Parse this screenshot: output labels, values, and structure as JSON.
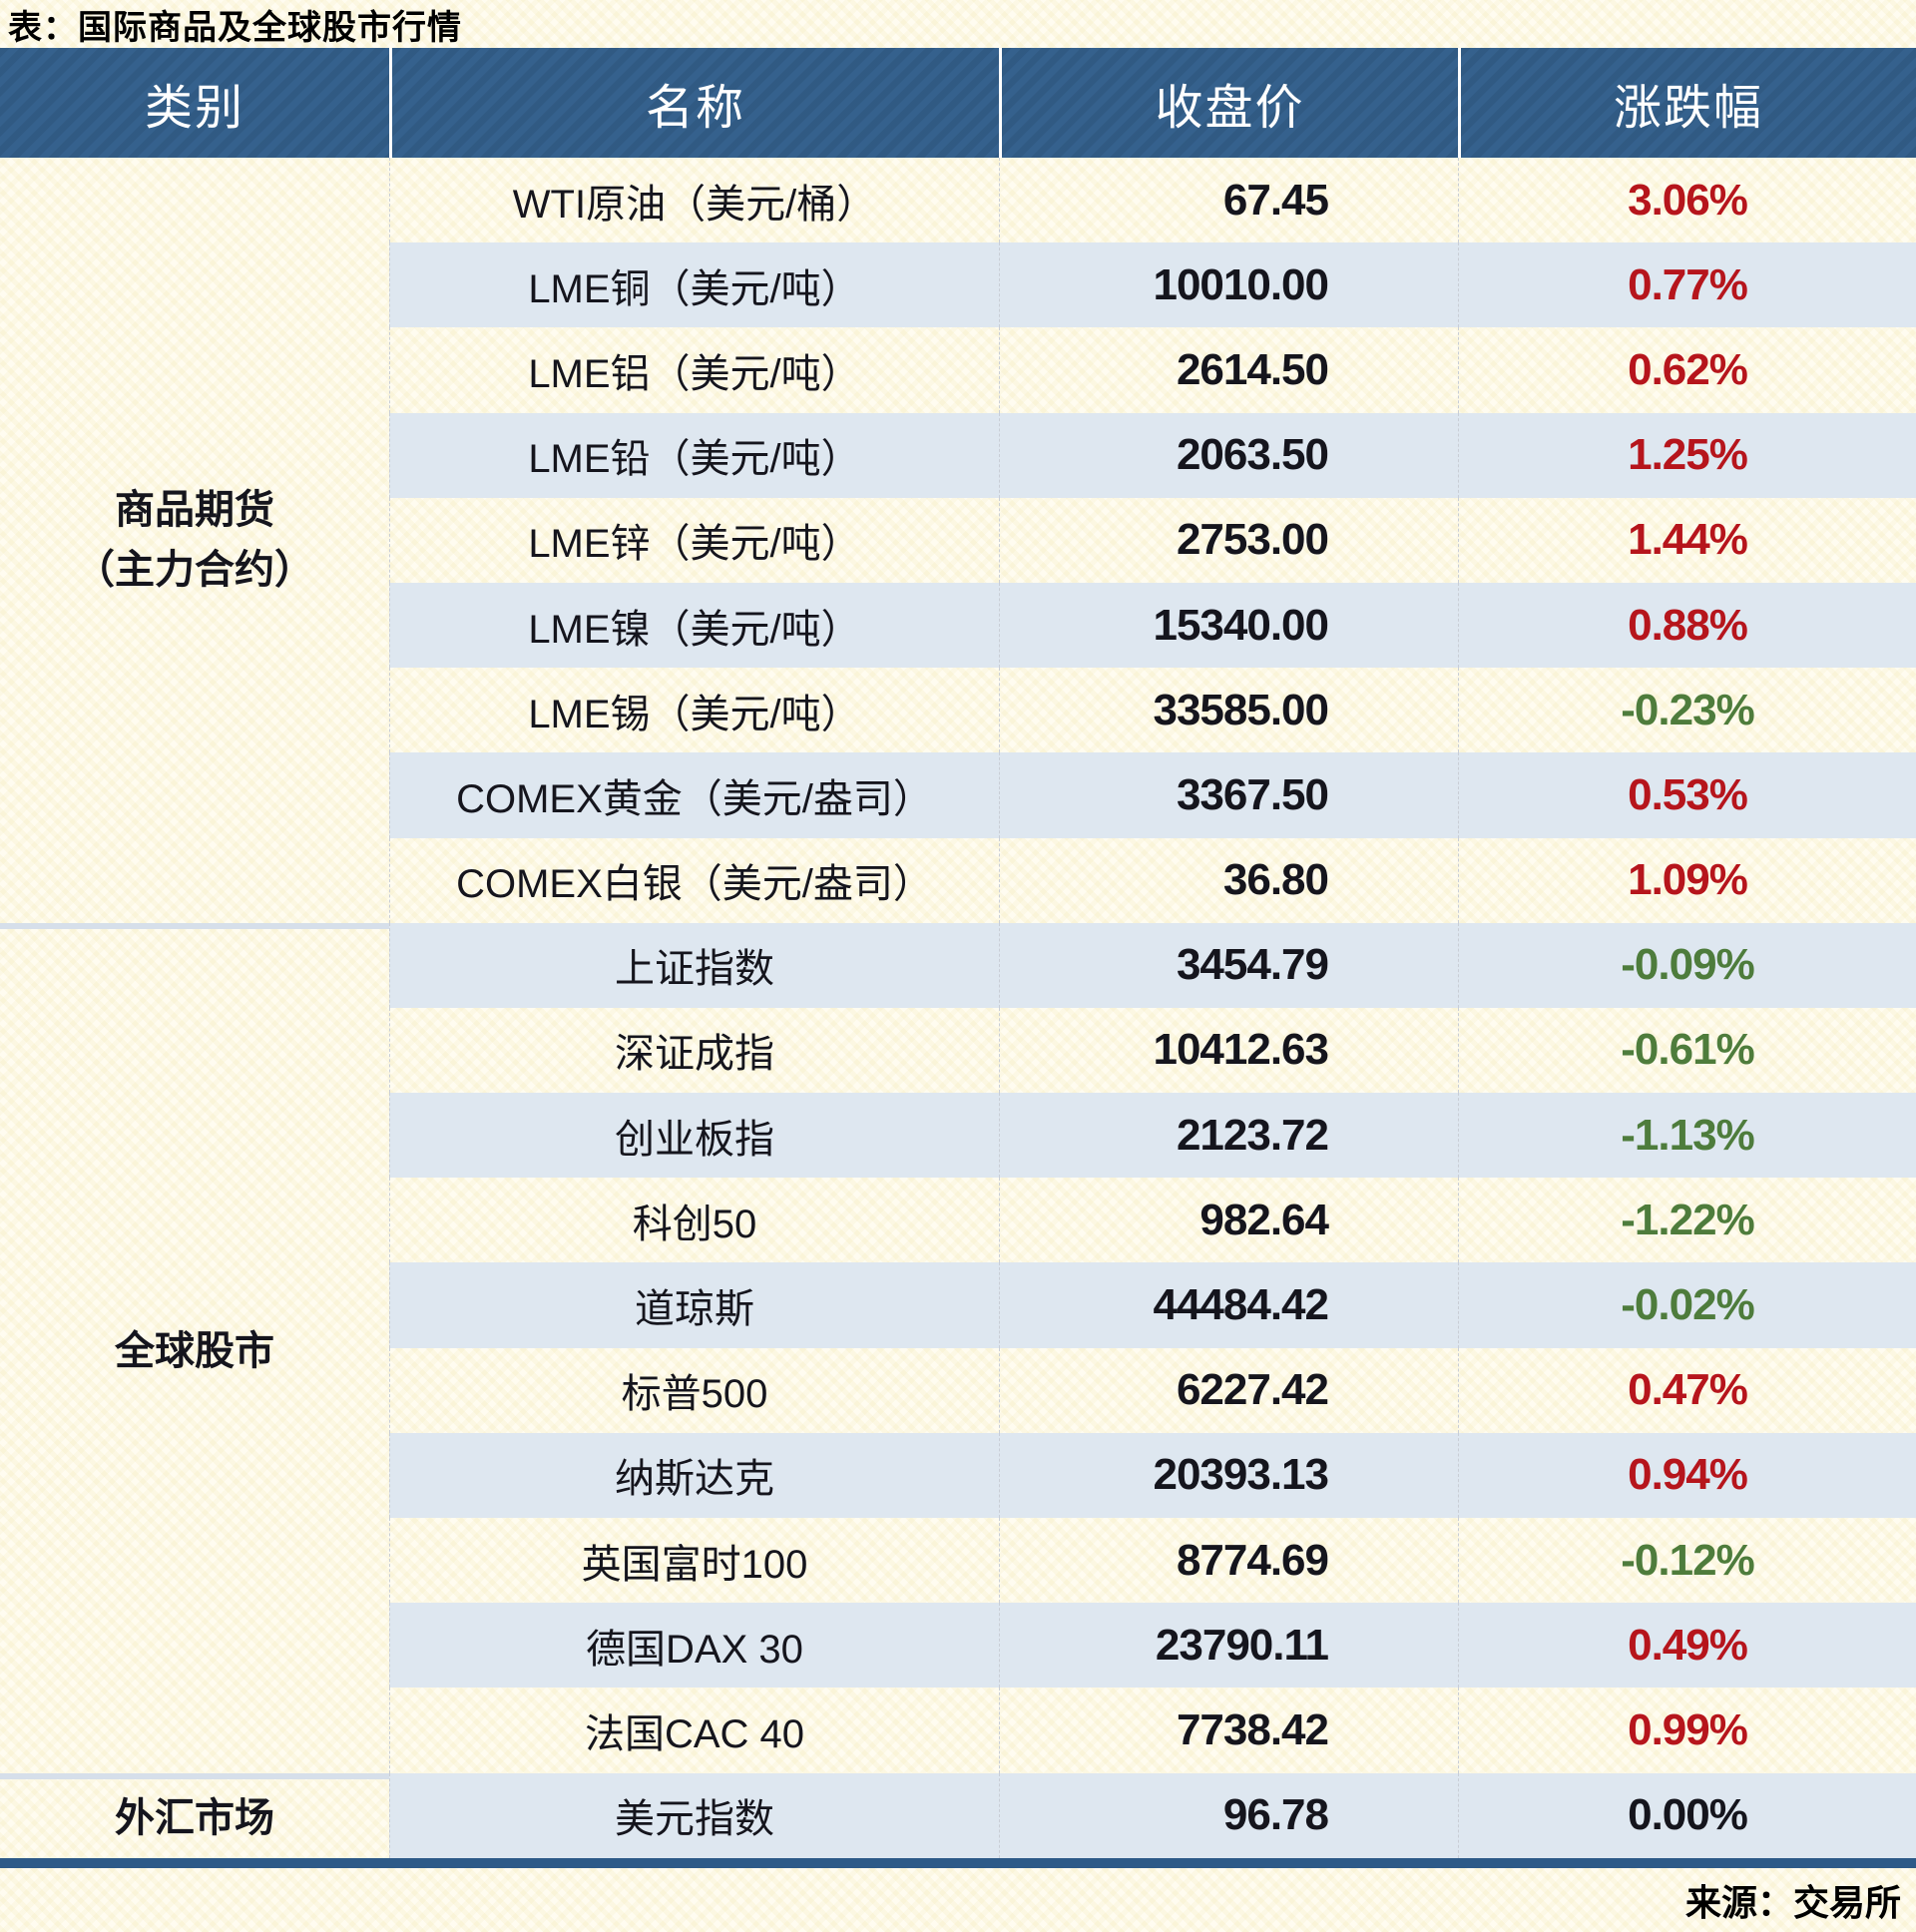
{
  "title": "表：国际商品及全球股市行情",
  "source": "来源：交易所",
  "header": {
    "category": "类别",
    "name": "名称",
    "close": "收盘价",
    "change": "涨跌幅"
  },
  "sections": [
    {
      "category_lines": [
        "商品期货",
        "（主力合约）"
      ],
      "rows": [
        {
          "name": "WTI原油（美元/桶）",
          "close": "67.45",
          "change": "3.06%",
          "dir": "up"
        },
        {
          "name": "LME铜（美元/吨）",
          "close": "10010.00",
          "change": "0.77%",
          "dir": "up"
        },
        {
          "name": "LME铝（美元/吨）",
          "close": "2614.50",
          "change": "0.62%",
          "dir": "up"
        },
        {
          "name": "LME铅（美元/吨）",
          "close": "2063.50",
          "change": "1.25%",
          "dir": "up"
        },
        {
          "name": "LME锌（美元/吨）",
          "close": "2753.00",
          "change": "1.44%",
          "dir": "up"
        },
        {
          "name": "LME镍（美元/吨）",
          "close": "15340.00",
          "change": "0.88%",
          "dir": "up"
        },
        {
          "name": "LME锡（美元/吨）",
          "close": "33585.00",
          "change": "-0.23%",
          "dir": "down"
        },
        {
          "name": "COMEX黄金（美元/盎司）",
          "close": "3367.50",
          "change": "0.53%",
          "dir": "up"
        },
        {
          "name": "COMEX白银（美元/盎司）",
          "close": "36.80",
          "change": "1.09%",
          "dir": "up"
        }
      ]
    },
    {
      "category_lines": [
        "全球股市"
      ],
      "rows": [
        {
          "name": "上证指数",
          "close": "3454.79",
          "change": "-0.09%",
          "dir": "down"
        },
        {
          "name": "深证成指",
          "close": "10412.63",
          "change": "-0.61%",
          "dir": "down"
        },
        {
          "name": "创业板指",
          "close": "2123.72",
          "change": "-1.13%",
          "dir": "down"
        },
        {
          "name": "科创50",
          "close": "982.64",
          "change": "-1.22%",
          "dir": "down"
        },
        {
          "name": "道琼斯",
          "close": "44484.42",
          "change": "-0.02%",
          "dir": "down"
        },
        {
          "name": "标普500",
          "close": "6227.42",
          "change": "0.47%",
          "dir": "up"
        },
        {
          "name": "纳斯达克",
          "close": "20393.13",
          "change": "0.94%",
          "dir": "up"
        },
        {
          "name": "英国富时100",
          "close": "8774.69",
          "change": "-0.12%",
          "dir": "down"
        },
        {
          "name": "德国DAX 30",
          "close": "23790.11",
          "change": "0.49%",
          "dir": "up"
        },
        {
          "name": "法国CAC 40",
          "close": "7738.42",
          "change": "0.99%",
          "dir": "up"
        }
      ]
    },
    {
      "category_lines": [
        "外汇市场"
      ],
      "rows": [
        {
          "name": "美元指数",
          "close": "96.78",
          "change": "0.00%",
          "dir": "flat"
        }
      ]
    }
  ],
  "colors": {
    "header_bg": "#35618d",
    "stripe_row": "#dee7f0",
    "plain_row": "#fffcf0",
    "up_red": "#b6151c",
    "down_green": "#4e7c3c",
    "text": "#15151d",
    "bottom_line": "#2d5a88"
  },
  "chart_data": {
    "type": "table",
    "title": "表：国际商品及全球股市行情",
    "columns": [
      "类别",
      "名称",
      "收盘价",
      "涨跌幅"
    ],
    "rows": [
      [
        "商品期货（主力合约）",
        "WTI原油（美元/桶）",
        67.45,
        "3.06%"
      ],
      [
        "商品期货（主力合约）",
        "LME铜（美元/吨）",
        10010.0,
        "0.77%"
      ],
      [
        "商品期货（主力合约）",
        "LME铝（美元/吨）",
        2614.5,
        "0.62%"
      ],
      [
        "商品期货（主力合约）",
        "LME铅（美元/吨）",
        2063.5,
        "1.25%"
      ],
      [
        "商品期货（主力合约）",
        "LME锌（美元/吨）",
        2753.0,
        "1.44%"
      ],
      [
        "商品期货（主力合约）",
        "LME镍（美元/吨）",
        15340.0,
        "0.88%"
      ],
      [
        "商品期货（主力合约）",
        "LME锡（美元/吨）",
        33585.0,
        "-0.23%"
      ],
      [
        "商品期货（主力合约）",
        "COMEX黄金（美元/盎司）",
        3367.5,
        "0.53%"
      ],
      [
        "商品期货（主力合约）",
        "COMEX白银（美元/盎司）",
        36.8,
        "1.09%"
      ],
      [
        "全球股市",
        "上证指数",
        3454.79,
        "-0.09%"
      ],
      [
        "全球股市",
        "深证成指",
        10412.63,
        "-0.61%"
      ],
      [
        "全球股市",
        "创业板指",
        2123.72,
        "-1.13%"
      ],
      [
        "全球股市",
        "科创50",
        982.64,
        "-1.22%"
      ],
      [
        "全球股市",
        "道琼斯",
        44484.42,
        "-0.02%"
      ],
      [
        "全球股市",
        "标普500",
        6227.42,
        "0.47%"
      ],
      [
        "全球股市",
        "纳斯达克",
        20393.13,
        "0.94%"
      ],
      [
        "全球股市",
        "英国富时100",
        8774.69,
        "-0.12%"
      ],
      [
        "全球股市",
        "德国DAX 30",
        23790.11,
        "0.49%"
      ],
      [
        "全球股市",
        "法国CAC 40",
        7738.42,
        "0.99%"
      ],
      [
        "外汇市场",
        "美元指数",
        96.78,
        "0.00%"
      ]
    ],
    "style_notes": "positive changes in red, negative in green, zero in black; alternating row stripes"
  }
}
